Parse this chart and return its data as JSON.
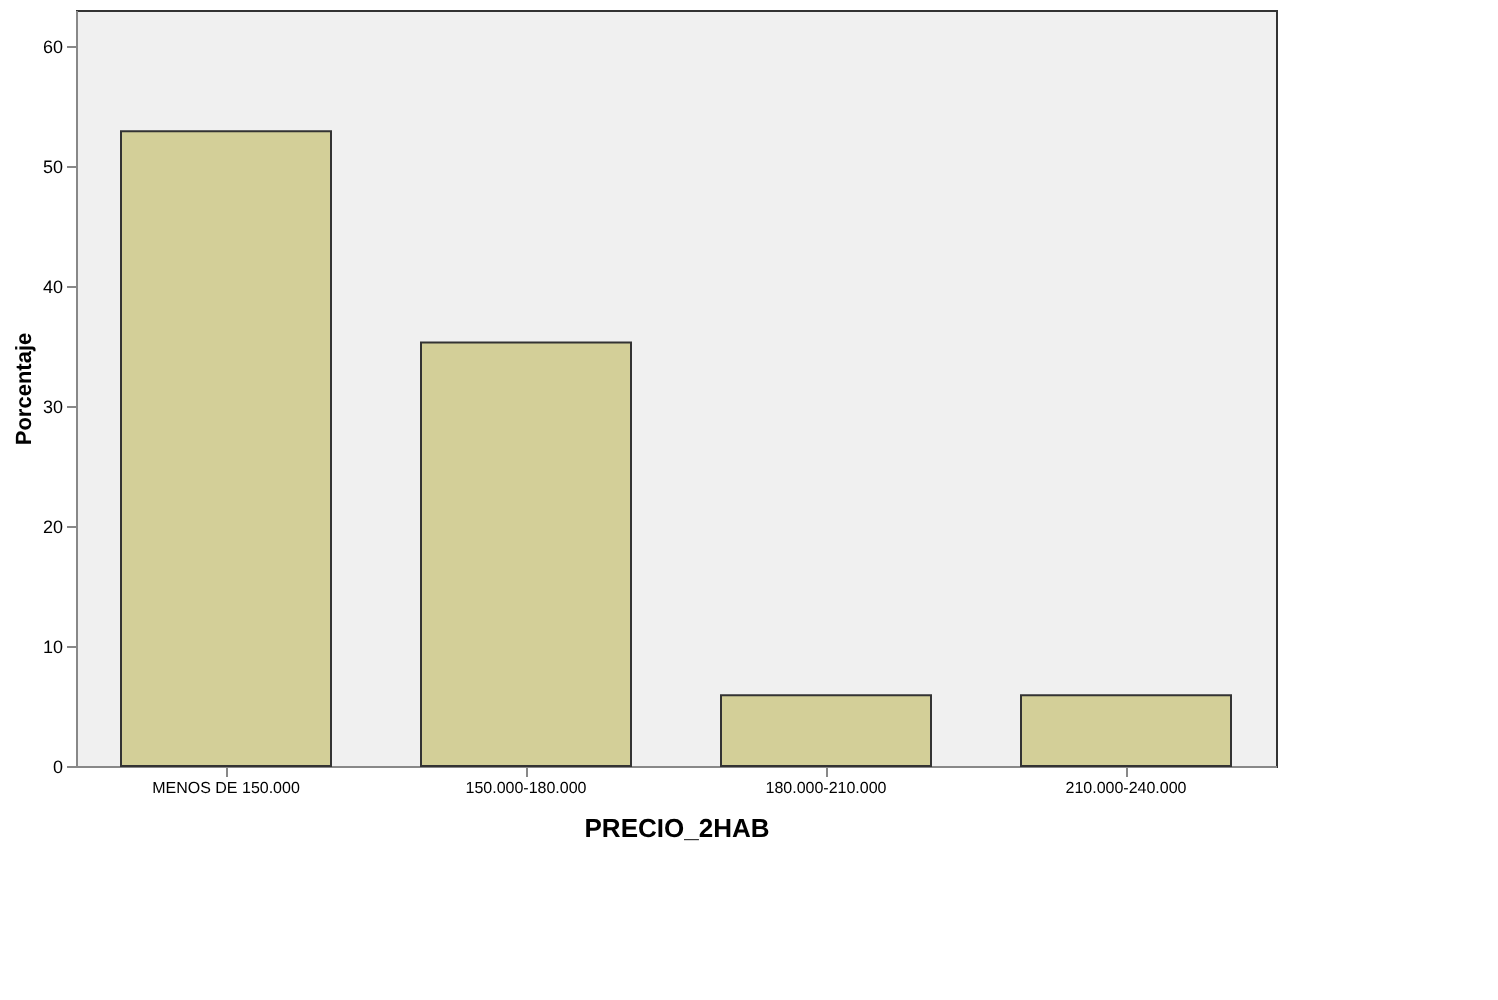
{
  "chart_data": {
    "type": "bar",
    "xlabel": "PRECIO_2HAB",
    "ylabel": "Porcentaje",
    "categories": [
      "MENOS DE 150.000",
      "150.000-180.000",
      "180.000-210.000",
      "210.000-240.000"
    ],
    "values": [
      52.9,
      35.3,
      5.9,
      5.9
    ],
    "color": "#d3cf98",
    "ylim": [
      0,
      63
    ],
    "yticks": [
      0,
      10,
      20,
      30,
      40,
      50,
      60
    ],
    "grid": false
  }
}
